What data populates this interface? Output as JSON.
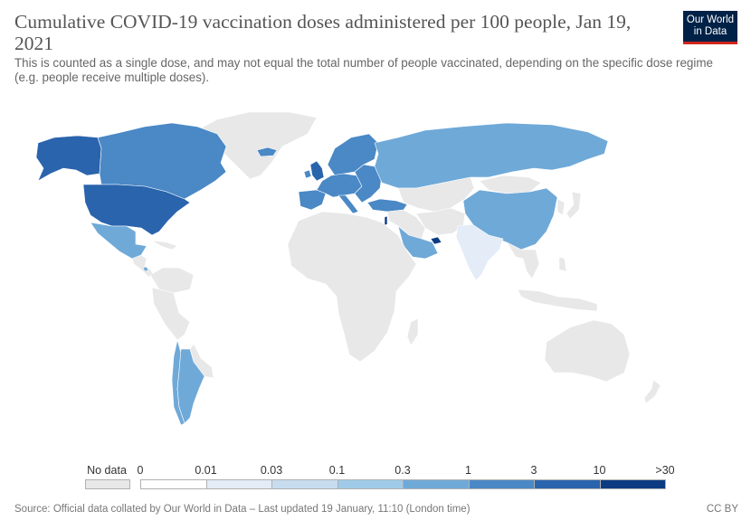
{
  "header": {
    "title": "Cumulative COVID-19 vaccination doses administered per 100 people, Jan 19, 2021",
    "subtitle": "This is counted as a single dose, and may not equal the total number of people vaccinated, depending on the specific dose regime (e.g. people receive multiple doses).",
    "logo_line1": "Our World",
    "logo_line2": "in Data",
    "logo_color": "#002147",
    "logo_accent": "#ce261e"
  },
  "legend": {
    "no_data_label": "No data",
    "no_data_color": "#e8e8e8",
    "bins": [
      {
        "color": "#ffffff"
      },
      {
        "color": "#e3ecf7"
      },
      {
        "color": "#c7dcef"
      },
      {
        "color": "#a0cbe8"
      },
      {
        "color": "#6fa9d8"
      },
      {
        "color": "#4a88c6"
      },
      {
        "color": "#2a64ad"
      },
      {
        "color": "#0c3b82"
      }
    ],
    "tick_labels": [
      "0",
      "0.01",
      "0.03",
      "0.1",
      "0.3",
      "1",
      "3",
      "10",
      ">30"
    ]
  },
  "regions": [
    {
      "name": "Greenland",
      "bin": -1
    },
    {
      "name": "Canada",
      "bin": 5
    },
    {
      "name": "Alaska",
      "bin": 6
    },
    {
      "name": "United States",
      "bin": 6
    },
    {
      "name": "Mexico",
      "bin": 4
    },
    {
      "name": "Central America",
      "bin": -1
    },
    {
      "name": "Costa Rica",
      "bin": 4
    },
    {
      "name": "Caribbean",
      "bin": -1
    },
    {
      "name": "Colombia / Venezuela",
      "bin": -1
    },
    {
      "name": "Peru / Ecuador / Bolivia",
      "bin": -1
    },
    {
      "name": "Brazil",
      "bin": 0
    },
    {
      "name": "Chile",
      "bin": 4
    },
    {
      "name": "Argentina",
      "bin": 4
    },
    {
      "name": "Paraguay / Uruguay",
      "bin": -1
    },
    {
      "name": "Iceland",
      "bin": 5
    },
    {
      "name": "United Kingdom",
      "bin": 6
    },
    {
      "name": "Ireland",
      "bin": 5
    },
    {
      "name": "Scandinavia",
      "bin": 5
    },
    {
      "name": "Spain / Portugal",
      "bin": 5
    },
    {
      "name": "Western / Central Europe",
      "bin": 5
    },
    {
      "name": "Eastern Europe",
      "bin": 5
    },
    {
      "name": "Italy",
      "bin": 5
    },
    {
      "name": "Turkey",
      "bin": 5
    },
    {
      "name": "Russia",
      "bin": 4
    },
    {
      "name": "Kazakhstan / Central Asia",
      "bin": -1
    },
    {
      "name": "Mongolia",
      "bin": -1
    },
    {
      "name": "China",
      "bin": 4
    },
    {
      "name": "Korea / Japan",
      "bin": -1
    },
    {
      "name": "Middle East",
      "bin": -1
    },
    {
      "name": "Saudi Arabia",
      "bin": 4
    },
    {
      "name": "United Arab Emirates",
      "bin": 7
    },
    {
      "name": "Israel",
      "bin": 7
    },
    {
      "name": "Iran / Afghanistan",
      "bin": -1
    },
    {
      "name": "India",
      "bin": 1
    },
    {
      "name": "Southeast Asia",
      "bin": -1
    },
    {
      "name": "Indonesia / Philippines",
      "bin": -1
    },
    {
      "name": "Africa",
      "bin": -1
    },
    {
      "name": "Madagascar",
      "bin": -1
    },
    {
      "name": "Australia",
      "bin": -1
    },
    {
      "name": "New Zealand",
      "bin": -1
    }
  ],
  "footer": {
    "source": "Source: Official data collated by Our World in Data – Last updated 19 January, 11:10 (London time)",
    "license": "CC BY"
  }
}
